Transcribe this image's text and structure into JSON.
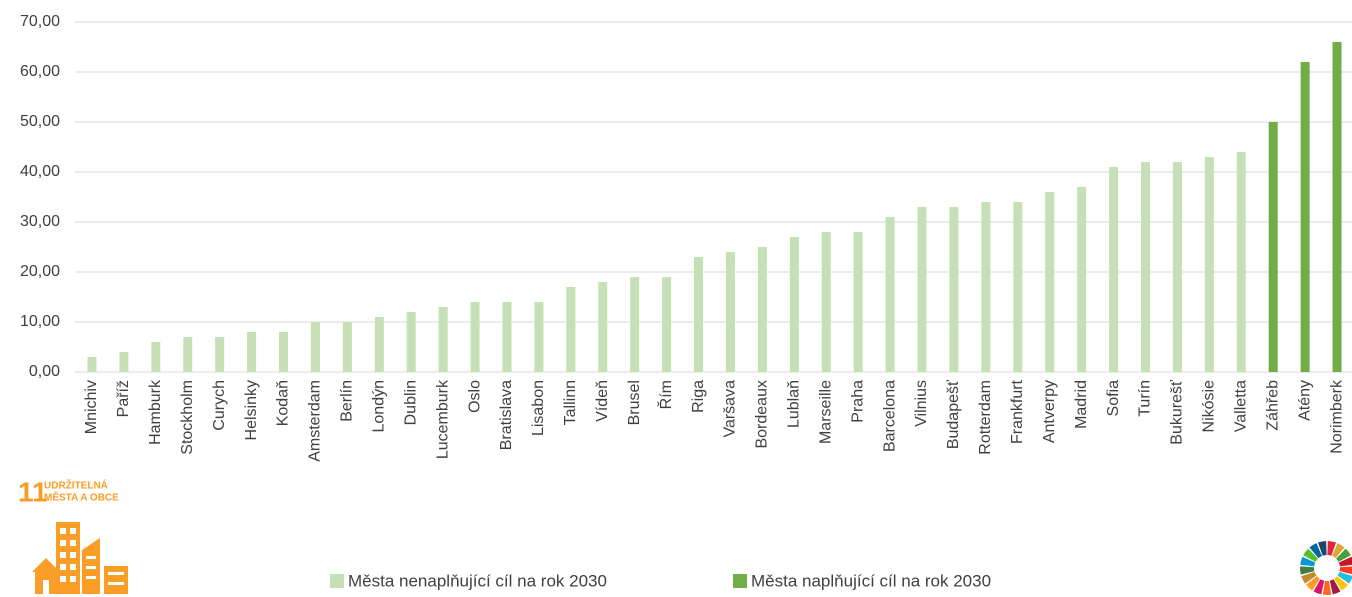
{
  "chart_data": {
    "type": "bar",
    "categories": [
      "Mnichiv",
      "Paříž",
      "Hamburk",
      "Stockholm",
      "Curych",
      "Helsinky",
      "Kodaň",
      "Amsterdam",
      "Berlín",
      "Londýn",
      "Dublin",
      "Lucemburk",
      "Oslo",
      "Bratislava",
      "Lisabon",
      "Tallinn",
      "Vídeň",
      "Brusel",
      "Řím",
      "Riga",
      "Varšava",
      "Bordeaux",
      "Lublaň",
      "Marseille",
      "Praha",
      "Barcelona",
      "Vilnius",
      "Budapešť",
      "Rotterdam",
      "Frankfurt",
      "Antverpy",
      "Madrid",
      "Sofia",
      "Turín",
      "Bukurešť",
      "Nikósie",
      "Valletta",
      "Záhřeb",
      "Atény",
      "Norimberk"
    ],
    "series": [
      {
        "name": "Města nenaplňující cíl na rok 2030",
        "color": "#c5e0b4",
        "values": [
          3,
          4,
          6,
          7,
          7,
          8,
          8,
          10,
          10,
          11,
          12,
          13,
          14,
          14,
          14,
          17,
          18,
          19,
          19,
          23,
          24,
          25,
          27,
          28,
          28,
          31,
          33,
          33,
          34,
          34,
          36,
          37,
          41,
          42,
          42,
          43,
          44,
          null,
          null,
          null
        ]
      },
      {
        "name": "Města naplňující cíl na rok 2030",
        "color": "#70ad47",
        "values": [
          null,
          null,
          null,
          null,
          null,
          null,
          null,
          null,
          null,
          null,
          null,
          null,
          null,
          null,
          null,
          null,
          null,
          null,
          null,
          null,
          null,
          null,
          null,
          null,
          null,
          null,
          null,
          null,
          null,
          null,
          null,
          null,
          null,
          null,
          null,
          null,
          null,
          50,
          62,
          66
        ]
      }
    ],
    "ylim": [
      0,
      70
    ],
    "yticks": [
      {
        "value": 0,
        "label": "0,00"
      },
      {
        "value": 10,
        "label": "10,00"
      },
      {
        "value": 20,
        "label": "20,00"
      },
      {
        "value": 30,
        "label": "30,00"
      },
      {
        "value": 40,
        "label": "40,00"
      },
      {
        "value": 50,
        "label": "50,00"
      },
      {
        "value": 60,
        "label": "60,00"
      },
      {
        "value": 70,
        "label": "70,00"
      }
    ],
    "grid": true
  },
  "logo": {
    "number": "11",
    "lines": [
      "UDRŽITELNÁ",
      "MĚSTA A OBCE"
    ]
  }
}
